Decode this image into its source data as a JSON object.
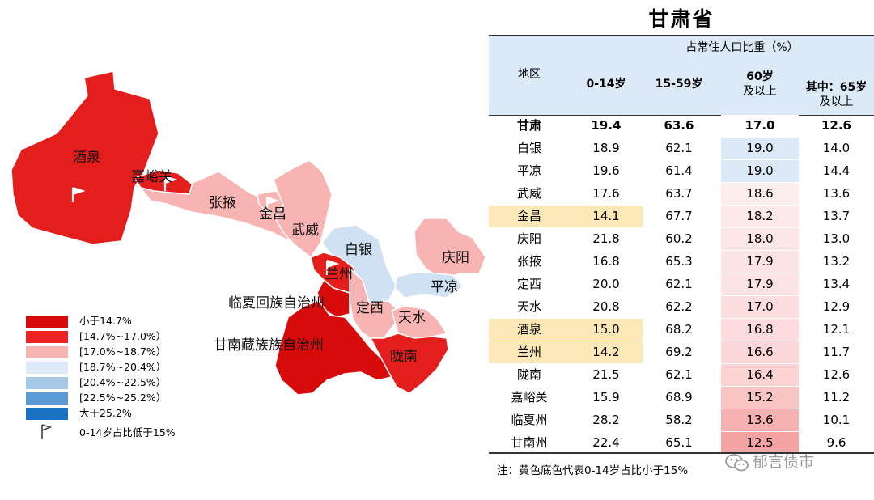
{
  "map": {
    "regions": [
      {
        "name": "酒泉",
        "color": "#e41d1d"
      },
      {
        "name": "嘉峪关",
        "color": "#e41d1d"
      },
      {
        "name": "张掖",
        "color": "#f8b3b3"
      },
      {
        "name": "金昌",
        "color": "#f8b3b3"
      },
      {
        "name": "武威",
        "color": "#f8b3b3"
      },
      {
        "name": "白银",
        "color": "#cfe1f2"
      },
      {
        "name": "庆阳",
        "color": "#f8b3b3"
      },
      {
        "name": "平凉",
        "color": "#cfe1f2"
      },
      {
        "name": "兰州",
        "color": "#e41d1d"
      },
      {
        "name": "临夏回族自治州",
        "color": "#d80b0b"
      },
      {
        "name": "定西",
        "color": "#f8b3b3"
      },
      {
        "name": "天水",
        "color": "#f8b3b3"
      },
      {
        "name": "甘南藏族族自治州",
        "color": "#d80b0b"
      },
      {
        "name": "陇南",
        "color": "#e41d1d"
      }
    ]
  },
  "legend": [
    {
      "label": "小于14.7%",
      "color": "#d80b0b"
    },
    {
      "label": "[14.7%~17.0%）",
      "color": "#ee2424"
    },
    {
      "label": "[17.0%~18.7%）",
      "color": "#f8b3b3"
    },
    {
      "label": "[18.7%~20.4%）",
      "color": "#dce9f7"
    },
    {
      "label": "[20.4%~22.5%）",
      "color": "#a8c8e8"
    },
    {
      "label": "[22.5%~25.2%）",
      "color": "#5b9bd5"
    },
    {
      "label": "大于25.2%",
      "color": "#1a72c4"
    },
    {
      "label": "0-14岁占比低于15%",
      "color": "#ffffff"
    }
  ],
  "table": {
    "title": "甘肃省",
    "group_header": "占常住人口比重（%）",
    "col_region": "地区",
    "col_0_14": "0-14岁",
    "col_15_59": "15-59岁",
    "col_60_l1": "60岁",
    "col_60_l2": "及以上",
    "col_65_l1": "其中：65岁",
    "col_65_l2": "及以上",
    "rows": [
      {
        "region": "甘肃",
        "a": "19.4",
        "b": "63.6",
        "c": "17.0",
        "d": "12.6",
        "bold": true,
        "yellow": false,
        "c_color": "#ffffff"
      },
      {
        "region": "白银",
        "a": "18.9",
        "b": "62.1",
        "c": "19.0",
        "d": "14.0",
        "bold": false,
        "yellow": false,
        "c_color": "#dce9f7"
      },
      {
        "region": "平凉",
        "a": "19.6",
        "b": "61.4",
        "c": "19.0",
        "d": "14.4",
        "bold": false,
        "yellow": false,
        "c_color": "#dce9f7"
      },
      {
        "region": "武威",
        "a": "17.6",
        "b": "63.7",
        "c": "18.6",
        "d": "13.6",
        "bold": false,
        "yellow": false,
        "c_color": "#fdeeee"
      },
      {
        "region": "金昌",
        "a": "14.1",
        "b": "67.7",
        "c": "18.2",
        "d": "13.7",
        "bold": false,
        "yellow": true,
        "c_color": "#fde9e9"
      },
      {
        "region": "庆阳",
        "a": "21.8",
        "b": "60.2",
        "c": "18.0",
        "d": "13.0",
        "bold": false,
        "yellow": false,
        "c_color": "#fde6e6"
      },
      {
        "region": "张掖",
        "a": "16.8",
        "b": "65.3",
        "c": "17.9",
        "d": "13.2",
        "bold": false,
        "yellow": false,
        "c_color": "#fde4e4"
      },
      {
        "region": "定西",
        "a": "20.0",
        "b": "62.1",
        "c": "17.9",
        "d": "13.4",
        "bold": false,
        "yellow": false,
        "c_color": "#fde4e4"
      },
      {
        "region": "天水",
        "a": "20.8",
        "b": "62.2",
        "c": "17.0",
        "d": "12.9",
        "bold": false,
        "yellow": false,
        "c_color": "#fcdede"
      },
      {
        "region": "酒泉",
        "a": "15.0",
        "b": "68.2",
        "c": "16.8",
        "d": "12.1",
        "bold": false,
        "yellow": true,
        "c_color": "#fcdcdc"
      },
      {
        "region": "兰州",
        "a": "14.2",
        "b": "69.2",
        "c": "16.6",
        "d": "11.7",
        "bold": false,
        "yellow": true,
        "c_color": "#fbd7d7"
      },
      {
        "region": "陇南",
        "a": "21.5",
        "b": "62.1",
        "c": "16.4",
        "d": "12.6",
        "bold": false,
        "yellow": false,
        "c_color": "#fbd3d3"
      },
      {
        "region": "嘉峪关",
        "a": "15.9",
        "b": "68.9",
        "c": "15.2",
        "d": "11.2",
        "bold": false,
        "yellow": false,
        "c_color": "#f9c4c4"
      },
      {
        "region": "临夏州",
        "a": "28.2",
        "b": "58.2",
        "c": "13.6",
        "d": "10.1",
        "bold": false,
        "yellow": false,
        "c_color": "#f6b2b2"
      },
      {
        "region": "甘南州",
        "a": "22.4",
        "b": "65.1",
        "c": "12.5",
        "d": "9.6",
        "bold": false,
        "yellow": false,
        "c_color": "#f4a3a3"
      }
    ]
  },
  "note": "注：黄色底色代表0-14岁占比小于15%",
  "watermark": "郁言债市",
  "chart_data": {
    "type": "table",
    "title": "甘肃省",
    "columns": [
      "地区",
      "0-14岁",
      "15-59岁",
      "60岁及以上",
      "其中：65岁及以上"
    ],
    "unit": "占常住人口比重（%）",
    "rows": [
      [
        "甘肃",
        19.4,
        63.6,
        17.0,
        12.6
      ],
      [
        "白银",
        18.9,
        62.1,
        19.0,
        14.0
      ],
      [
        "平凉",
        19.6,
        61.4,
        19.0,
        14.4
      ],
      [
        "武威",
        17.6,
        63.7,
        18.6,
        13.6
      ],
      [
        "金昌",
        14.1,
        67.7,
        18.2,
        13.7
      ],
      [
        "庆阳",
        21.8,
        60.2,
        18.0,
        13.0
      ],
      [
        "张掖",
        16.8,
        65.3,
        17.9,
        13.2
      ],
      [
        "定西",
        20.0,
        62.1,
        17.9,
        13.4
      ],
      [
        "天水",
        20.8,
        62.2,
        17.0,
        12.9
      ],
      [
        "酒泉",
        15.0,
        68.2,
        16.8,
        12.1
      ],
      [
        "兰州",
        14.2,
        69.2,
        16.6,
        11.7
      ],
      [
        "陇南",
        21.5,
        62.1,
        16.4,
        12.6
      ],
      [
        "嘉峪关",
        15.9,
        68.9,
        15.2,
        11.2
      ],
      [
        "临夏州",
        28.2,
        58.2,
        13.6,
        10.1
      ],
      [
        "甘南州",
        22.4,
        65.1,
        12.5,
        9.6
      ]
    ]
  }
}
